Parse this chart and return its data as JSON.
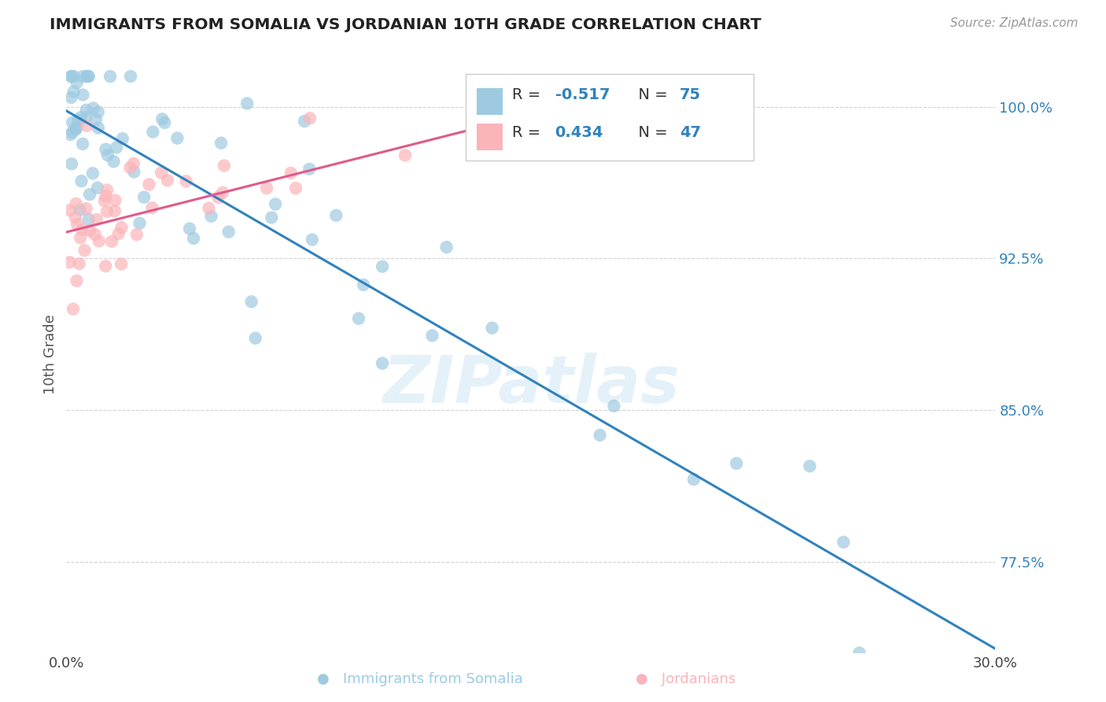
{
  "title": "IMMIGRANTS FROM SOMALIA VS JORDANIAN 10TH GRADE CORRELATION CHART",
  "source": "Source: ZipAtlas.com",
  "ylabel": "10th Grade",
  "xlim": [
    0.0,
    30.0
  ],
  "ylim": [
    73.0,
    102.5
  ],
  "yticks": [
    77.5,
    85.0,
    92.5,
    100.0
  ],
  "ytick_labels": [
    "77.5%",
    "85.0%",
    "92.5%",
    "100.0%"
  ],
  "R_blue": -0.517,
  "N_blue": 75,
  "R_pink": 0.434,
  "N_pink": 47,
  "blue_color": "#9ecae1",
  "pink_color": "#fbb4b9",
  "blue_line_color": "#3182bd",
  "pink_line_color": "#e05a8a",
  "watermark": "ZIPatlas",
  "blue_line_x0": 0.0,
  "blue_line_y0": 99.8,
  "blue_line_x1": 30.0,
  "blue_line_y1": 73.2,
  "pink_line_x0": 0.0,
  "pink_line_y0": 93.8,
  "pink_line_x1": 16.5,
  "pink_line_y1": 100.2
}
